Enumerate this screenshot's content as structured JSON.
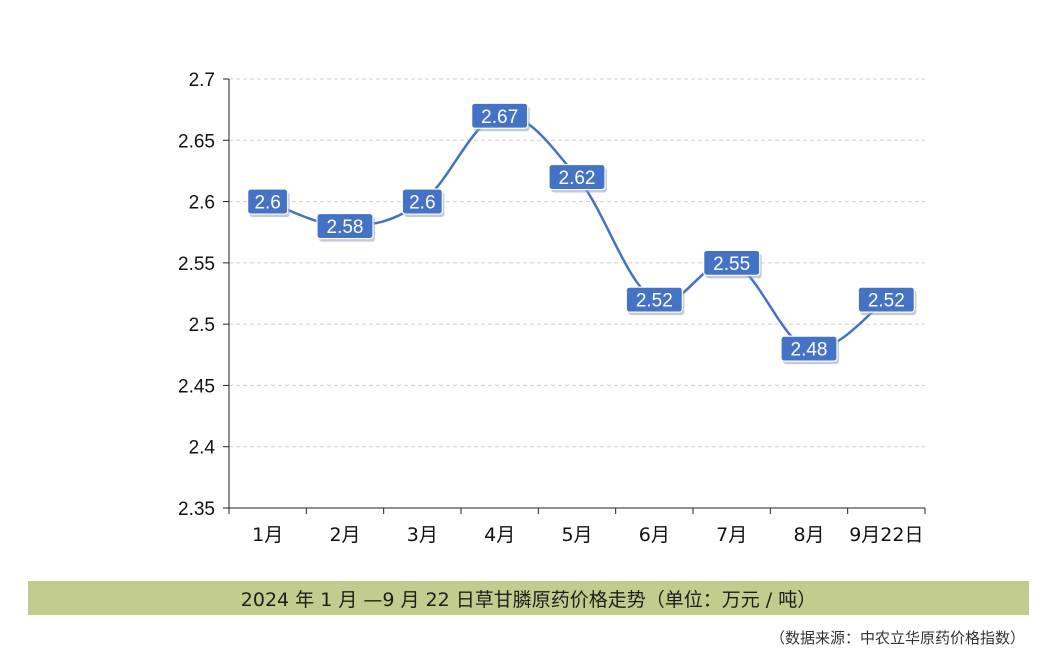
{
  "chart_data": {
    "type": "line",
    "categories": [
      "1月",
      "2月",
      "3月",
      "4月",
      "5月",
      "6月",
      "7月",
      "8月",
      "9月22日"
    ],
    "values": [
      2.6,
      2.58,
      2.6,
      2.67,
      2.62,
      2.52,
      2.55,
      2.48,
      2.52
    ],
    "value_labels": [
      "2.6",
      "2.58",
      "2.6",
      "2.67",
      "2.62",
      "2.52",
      "2.55",
      "2.48",
      "2.52"
    ],
    "y_ticks": [
      "2.35",
      "2.4",
      "2.45",
      "2.5",
      "2.55",
      "2.6",
      "2.65",
      "2.7"
    ],
    "ylim": [
      2.35,
      2.7
    ],
    "grid": "horizontal-dashed",
    "line_color": "#4472c4",
    "label_bg_color": "#4472c4",
    "smooth": true
  },
  "caption": "2024 年 1 月 —9 月 22 日草甘膦原药价格走势（单位：万元 / 吨）",
  "source": "（数据来源：中农立华原药价格指数）"
}
